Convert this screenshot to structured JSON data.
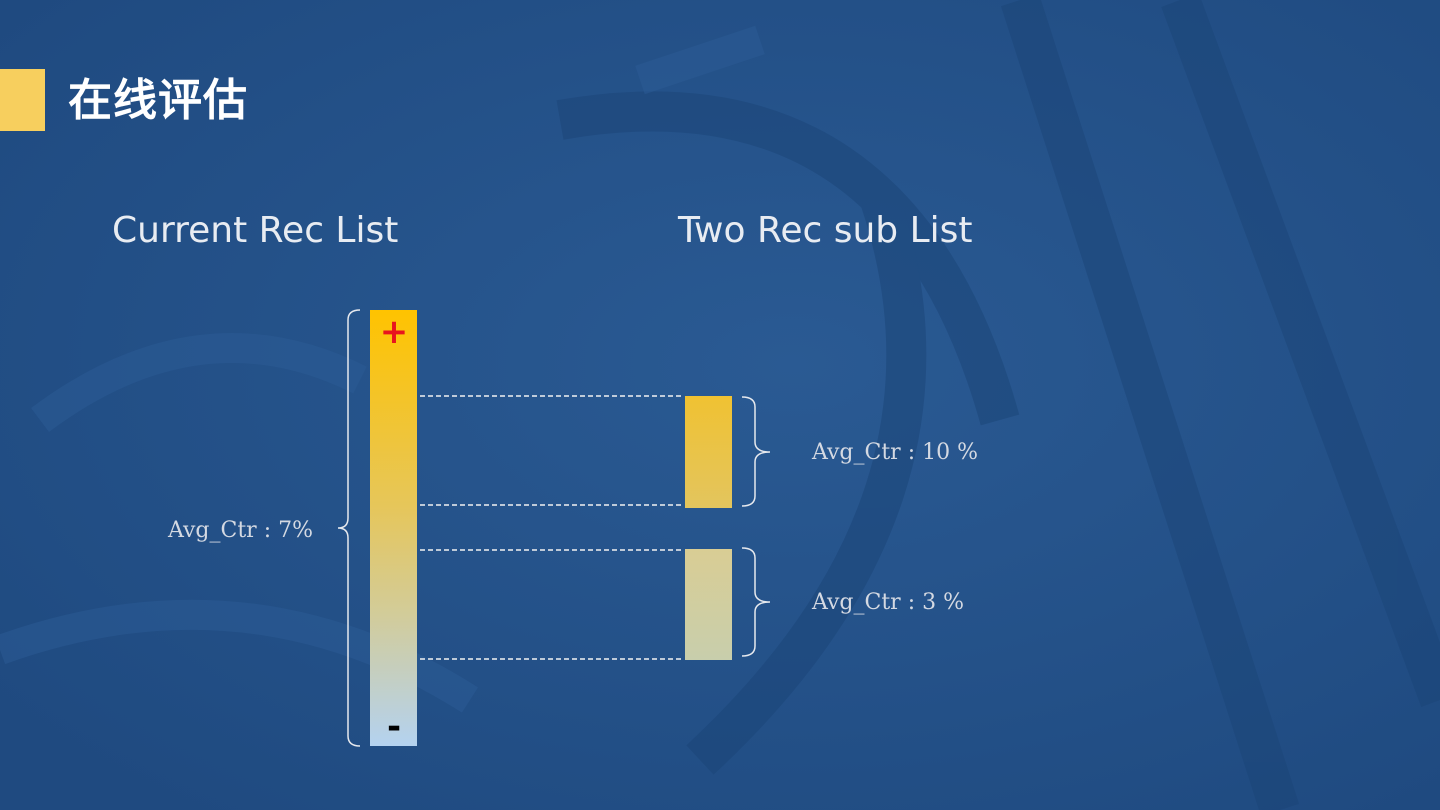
{
  "page": {
    "title": "在线评估"
  },
  "columns": {
    "left_title": "Current Rec List",
    "right_title": "Two Rec sub List"
  },
  "current_list": {
    "avg_label": "Avg_Ctr : 7%",
    "top_marker": "+",
    "bottom_marker": "-"
  },
  "sub_lists": [
    {
      "avg_label": "Avg_Ctr : 10 %"
    },
    {
      "avg_label": "Avg_Ctr : 3 %"
    }
  ],
  "colors": {
    "background": "#244f86",
    "accent": "#f7cf5e",
    "gradient_top": "#ffc300",
    "gradient_bottom": "#b4d2f0",
    "plus_marker": "#e8141e",
    "minus_marker": "#000000"
  }
}
